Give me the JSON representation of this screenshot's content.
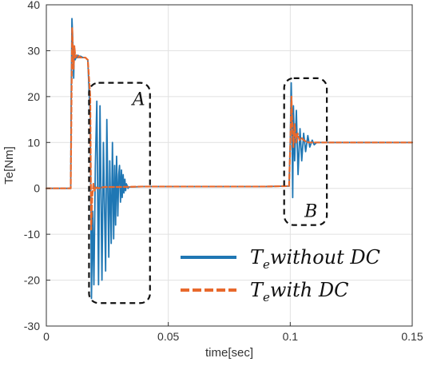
{
  "chart_data": {
    "type": "line",
    "title": "",
    "xlabel": "time[sec]",
    "ylabel": "Te[Nm]",
    "xlim": [
      0,
      0.15
    ],
    "ylim": [
      -30,
      40
    ],
    "x_ticks": [
      0,
      0.05,
      0.1,
      0.15
    ],
    "x_tick_labels": [
      "0",
      "0.05",
      "0.1",
      "0.15"
    ],
    "y_ticks": [
      -30,
      -20,
      -10,
      0,
      10,
      20,
      30,
      40
    ],
    "y_tick_labels": [
      "-30",
      "-20",
      "-10",
      "0",
      "10",
      "20",
      "30",
      "40"
    ],
    "grid": true,
    "legend_position": "bottom-right",
    "series": [
      {
        "name": "without DC",
        "legend_symbol": "T",
        "legend_subscript": "e",
        "legend_text": "without DC",
        "color": "#1f77b4",
        "line_style": "solid",
        "x": [
          0,
          0.01,
          0.0102,
          0.0105,
          0.0108,
          0.011,
          0.0112,
          0.0115,
          0.0118,
          0.0122,
          0.0126,
          0.013,
          0.0135,
          0.014,
          0.015,
          0.016,
          0.017,
          0.018,
          0.0185,
          0.019,
          0.0195,
          0.0201,
          0.0207,
          0.0214,
          0.022,
          0.0228,
          0.0234,
          0.0243,
          0.0248,
          0.0256,
          0.026,
          0.0266,
          0.0271,
          0.0276,
          0.028,
          0.0284,
          0.0288,
          0.0293,
          0.0297,
          0.03,
          0.0304,
          0.0308,
          0.0311,
          0.0315,
          0.0318,
          0.0322,
          0.0325,
          0.0328,
          0.0332,
          0.0335,
          0.0338,
          0.0342,
          0.0346,
          0.035,
          0.04,
          0.05,
          0.06,
          0.07,
          0.08,
          0.09,
          0.0995,
          0.1,
          0.1004,
          0.1007,
          0.101,
          0.1013,
          0.1018,
          0.1025,
          0.1032,
          0.104,
          0.1047,
          0.1055,
          0.1063,
          0.1072,
          0.108,
          0.109,
          0.1098,
          0.1108,
          0.112,
          0.114,
          0.118,
          0.125,
          0.13,
          0.135,
          0.14,
          0.145,
          0.15
        ],
        "y": [
          0,
          0,
          20,
          37,
          33,
          29,
          24,
          31,
          28,
          28.5,
          28.5,
          29,
          28.5,
          28.8,
          28.5,
          28.5,
          28,
          15,
          -24,
          -5,
          -21,
          5,
          19,
          -21,
          18,
          -20,
          10,
          -18,
          15,
          -15,
          6,
          -12,
          10,
          -11,
          5,
          -8,
          7,
          -6,
          3,
          5,
          -3,
          4,
          -2,
          3,
          -1,
          2,
          -0.5,
          1,
          0.5,
          0,
          0.3,
          0.3,
          0.3,
          0.3,
          0.4,
          0.4,
          0.4,
          0.4,
          0.4,
          0.4,
          0.5,
          10,
          23,
          15,
          -2,
          18,
          6,
          17,
          3,
          13,
          6,
          12,
          8,
          11.5,
          9,
          10.5,
          9.5,
          10,
          10,
          10,
          10,
          10,
          10,
          10,
          10,
          10,
          10
        ]
      },
      {
        "name": "with DC",
        "legend_symbol": "T",
        "legend_subscript": "e",
        "legend_text": "with DC",
        "color": "#e8692c",
        "line_style": "dashed",
        "x": [
          0,
          0.01,
          0.0103,
          0.0106,
          0.0109,
          0.0112,
          0.0115,
          0.0119,
          0.0124,
          0.013,
          0.0135,
          0.014,
          0.015,
          0.016,
          0.017,
          0.018,
          0.0184,
          0.0188,
          0.0193,
          0.0198,
          0.0205,
          0.0215,
          0.0225,
          0.024,
          0.03,
          0.04,
          0.05,
          0.06,
          0.07,
          0.08,
          0.09,
          0.0995,
          0.1,
          0.1005,
          0.1009,
          0.1013,
          0.1018,
          0.1024,
          0.103,
          0.1038,
          0.1046,
          0.1055,
          0.1065,
          0.1075,
          0.109,
          0.111,
          0.115,
          0.12,
          0.13,
          0.14,
          0.15
        ],
        "y": [
          0,
          0,
          18,
          35,
          30,
          26,
          31,
          28.5,
          29,
          28.5,
          28.8,
          28.5,
          28.5,
          28.5,
          28,
          20,
          -9,
          -2,
          1,
          -0.5,
          0.2,
          0,
          0.2,
          0.3,
          0.3,
          0.4,
          0.4,
          0.4,
          0.4,
          0.4,
          0.4,
          0.5,
          9,
          20,
          13,
          9,
          14,
          10,
          12,
          10.5,
          11,
          10.5,
          10.2,
          10,
          10,
          10,
          10,
          10,
          10,
          10,
          10
        ]
      }
    ],
    "annotations": [
      {
        "label": "A",
        "x_range": [
          0.0175,
          0.0425
        ],
        "y_range": [
          -25,
          23
        ]
      },
      {
        "label": "B",
        "x_range": [
          0.0975,
          0.115
        ],
        "y_range": [
          -8,
          24
        ]
      }
    ]
  }
}
